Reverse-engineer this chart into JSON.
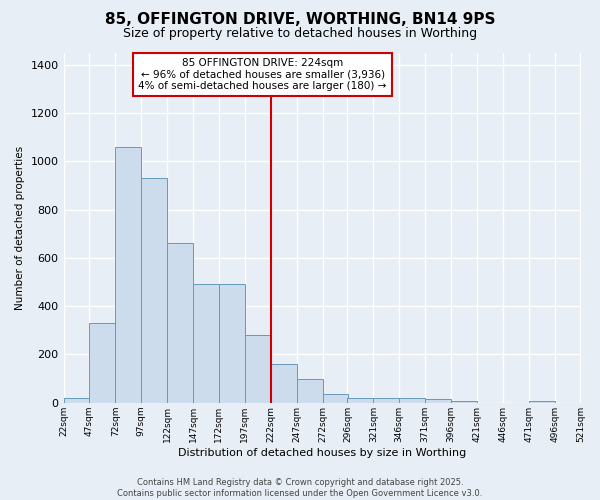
{
  "title": "85, OFFINGTON DRIVE, WORTHING, BN14 9PS",
  "subtitle": "Size of property relative to detached houses in Worthing",
  "xlabel": "Distribution of detached houses by size in Worthing",
  "ylabel": "Number of detached properties",
  "bar_color": "#cddcec",
  "bar_edge_color": "#6699bb",
  "background_color": "#e8eef5",
  "grid_color": "#ffffff",
  "annotation_text": "85 OFFINGTON DRIVE: 224sqm\n← 96% of detached houses are smaller (3,936)\n4% of semi-detached houses are larger (180) →",
  "vline_x": 222,
  "vline_color": "#cc0000",
  "bin_edges": [
    22,
    47,
    72,
    97,
    122,
    147,
    172,
    197,
    222,
    247,
    272,
    296,
    321,
    346,
    371,
    396,
    421,
    446,
    471,
    496,
    521
  ],
  "bar_heights": [
    20,
    330,
    1060,
    930,
    660,
    490,
    490,
    280,
    160,
    100,
    35,
    20,
    20,
    20,
    15,
    8,
    0,
    0,
    8,
    0,
    0
  ],
  "tick_labels": [
    "22sqm",
    "47sqm",
    "72sqm",
    "97sqm",
    "122sqm",
    "147sqm",
    "172sqm",
    "197sqm",
    "222sqm",
    "247sqm",
    "272sqm",
    "296sqm",
    "321sqm",
    "346sqm",
    "371sqm",
    "396sqm",
    "421sqm",
    "446sqm",
    "471sqm",
    "496sqm",
    "521sqm"
  ],
  "ylim": [
    0,
    1450
  ],
  "yticks": [
    0,
    200,
    400,
    600,
    800,
    1000,
    1200,
    1400
  ],
  "footer_text": "Contains HM Land Registry data © Crown copyright and database right 2025.\nContains public sector information licensed under the Open Government Licence v3.0.",
  "title_fontsize": 11,
  "subtitle_fontsize": 9,
  "annotation_fontsize": 7.5,
  "annotation_box_color": "#ffffff",
  "annotation_box_edge": "#cc0000"
}
